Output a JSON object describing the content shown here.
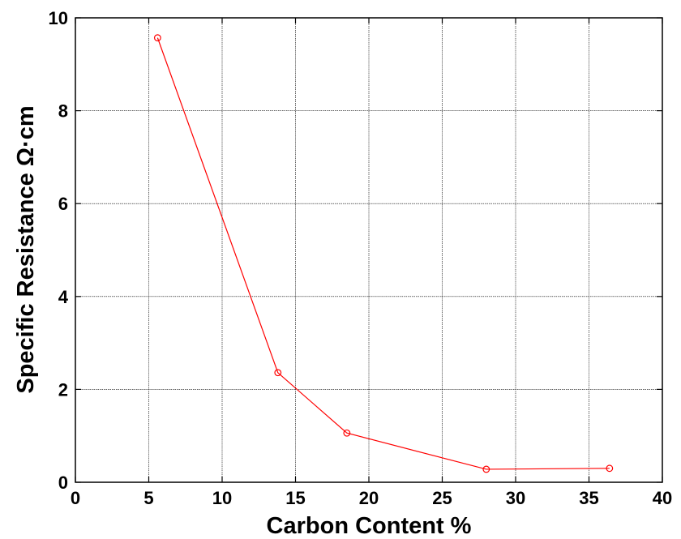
{
  "chart_data": {
    "type": "line",
    "title": "",
    "xlabel": "Carbon Content %",
    "ylabel": "Specific Resistance Ω·cm",
    "xlim": [
      0,
      40
    ],
    "ylim": [
      0,
      10
    ],
    "xticks": [
      0,
      5,
      10,
      15,
      20,
      25,
      30,
      35,
      40
    ],
    "yticks": [
      0,
      2,
      4,
      6,
      8,
      10
    ],
    "grid": true,
    "series": [
      {
        "x": [
          5.6,
          13.8,
          18.5,
          28.0,
          36.4
        ],
        "y": [
          9.57,
          2.36,
          1.06,
          0.28,
          0.3
        ],
        "color": "#ff0000",
        "marker": "circle-open"
      }
    ]
  }
}
